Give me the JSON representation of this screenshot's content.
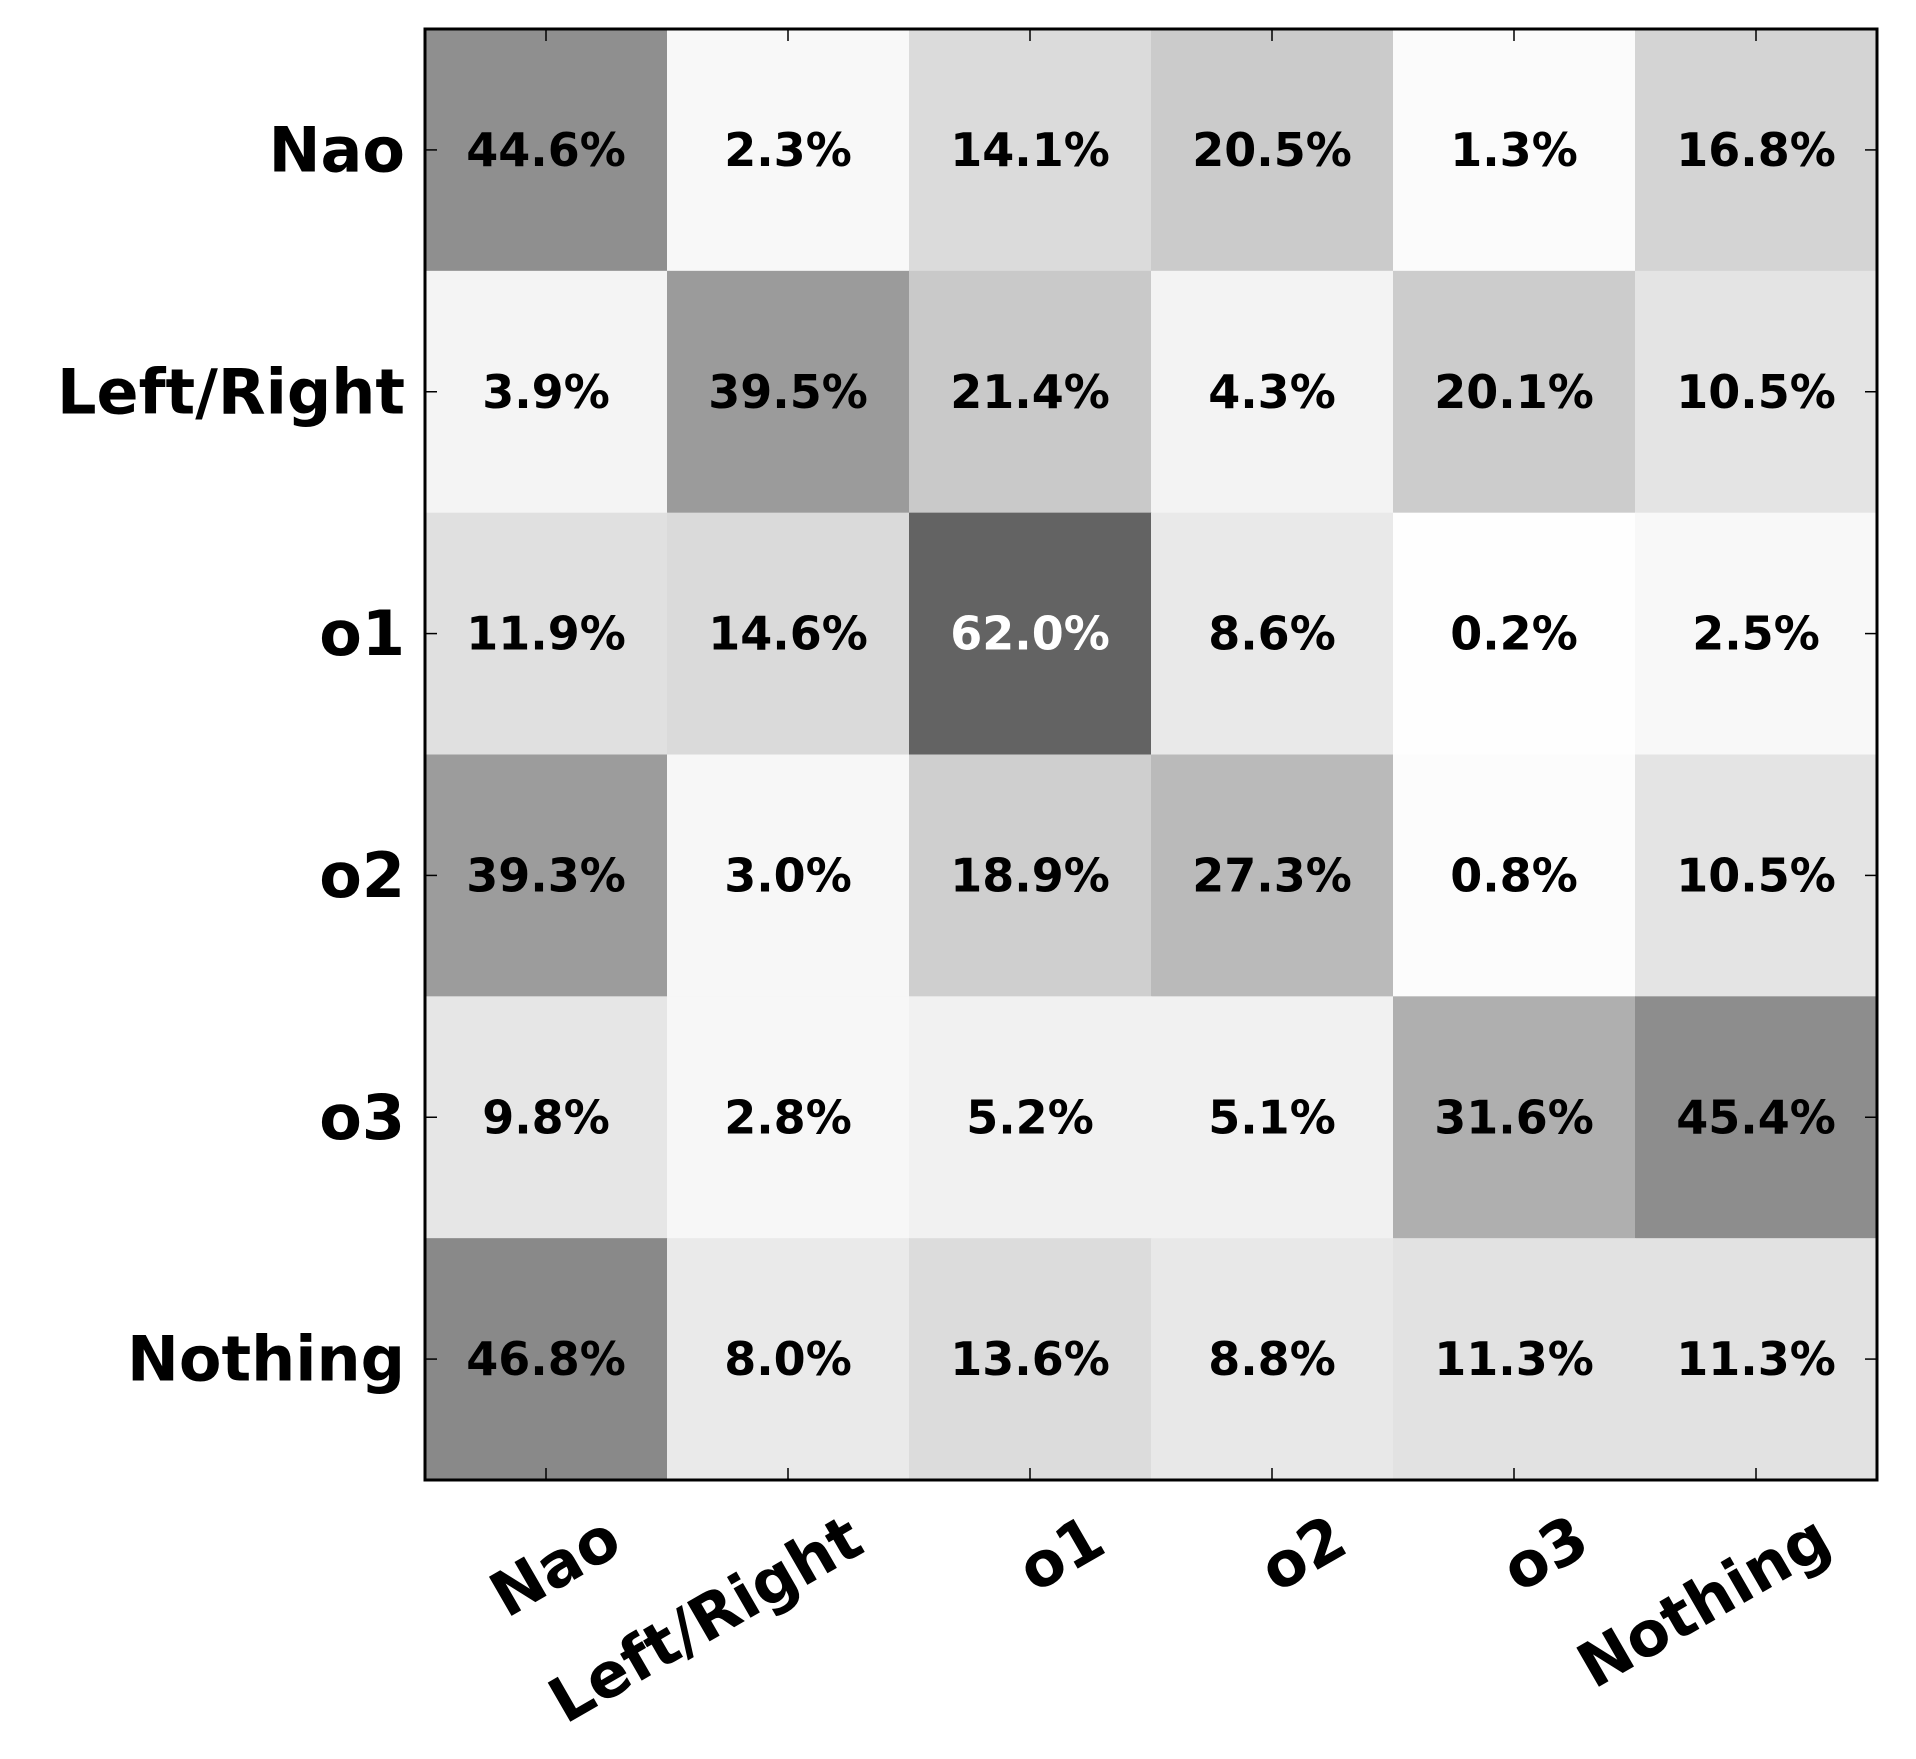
{
  "chart_data": {
    "type": "heatmap",
    "title": "",
    "xlabel": "",
    "ylabel": "",
    "colormap": "greys",
    "value_range": [
      0,
      62.0
    ],
    "unit": "%",
    "x_categories": [
      "Nao",
      "Left/Right",
      "o1",
      "o2",
      "o3",
      "Nothing"
    ],
    "y_categories": [
      "Nao",
      "Left/Right",
      "o1",
      "o2",
      "o3",
      "Nothing"
    ],
    "values": [
      [
        44.6,
        2.3,
        14.1,
        20.5,
        1.3,
        16.8
      ],
      [
        3.9,
        39.5,
        21.4,
        4.3,
        20.1,
        10.5
      ],
      [
        11.9,
        14.6,
        62.0,
        8.6,
        0.2,
        2.5
      ],
      [
        39.3,
        3.0,
        18.9,
        27.3,
        0.8,
        10.5
      ],
      [
        9.8,
        2.8,
        5.2,
        5.1,
        31.6,
        45.4
      ],
      [
        46.8,
        8.0,
        13.6,
        8.8,
        11.3,
        11.3
      ]
    ],
    "cell_labels": [
      [
        "44.6%",
        "2.3%",
        "14.1%",
        "20.5%",
        "1.3%",
        "16.8%"
      ],
      [
        "3.9%",
        "39.5%",
        "21.4%",
        "4.3%",
        "20.1%",
        "10.5%"
      ],
      [
        "11.9%",
        "14.6%",
        "62.0%",
        "8.6%",
        "0.2%",
        "2.5%"
      ],
      [
        "39.3%",
        "3.0%",
        "18.9%",
        "27.3%",
        "0.8%",
        "10.5%"
      ],
      [
        "9.8%",
        "2.8%",
        "5.2%",
        "5.1%",
        "31.6%",
        "45.4%"
      ],
      [
        "46.8%",
        "8.0%",
        "13.6%",
        "8.8%",
        "11.3%",
        "11.3%"
      ]
    ],
    "grid": false,
    "legend": "none"
  }
}
